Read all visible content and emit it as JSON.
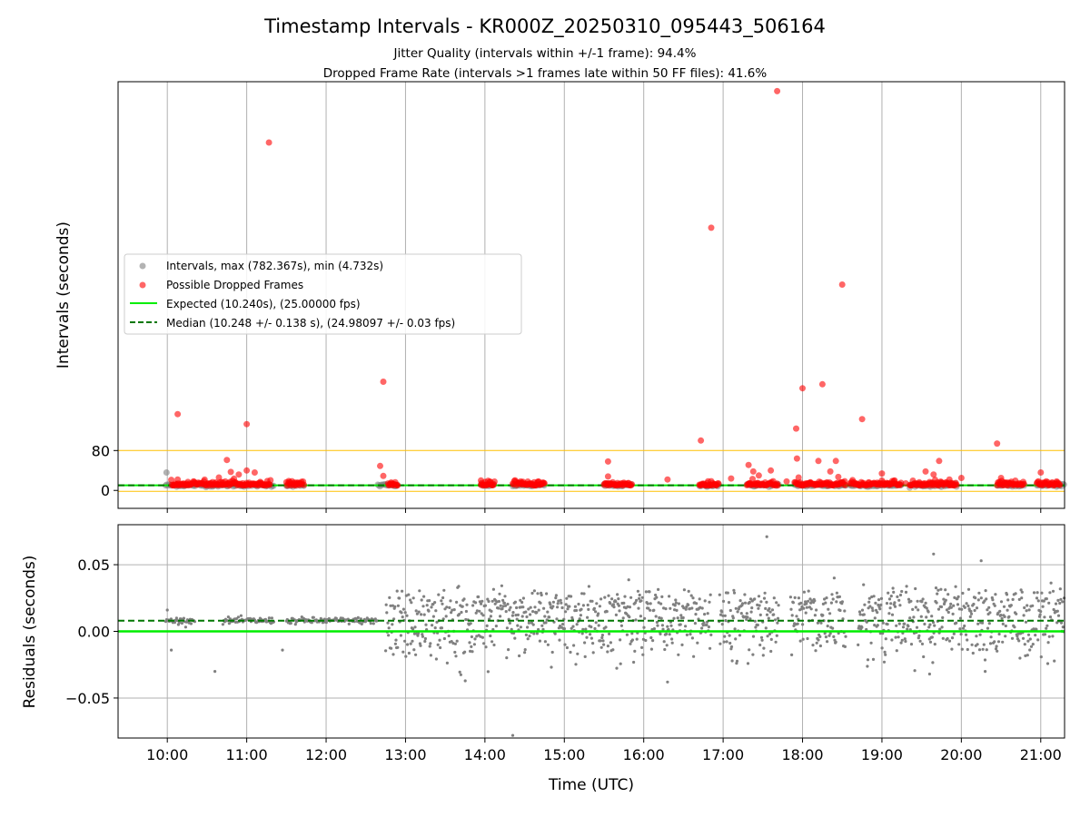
{
  "title": "Timestamp Intervals - KR000Z_20250310_095443_506164",
  "subtitles": [
    "Jitter Quality (intervals within +/-1 frame): 94.4%",
    "Dropped Frame Rate (intervals >1 frames late within 50 FF files): 41.6%"
  ],
  "colors": {
    "intervals": "#808080",
    "dropped": "#ff0000",
    "expected": "#00ee00",
    "median": "#007700",
    "threshold": "#ffc000",
    "grid": "#b0b0b0"
  },
  "chart_data": [
    {
      "type": "scatter",
      "panel": "top",
      "ylabel": "Intervals (seconds)",
      "yticks": [
        0,
        80
      ],
      "ylim": [
        -36,
        820
      ],
      "xticks": [
        "10:00",
        "11:00",
        "12:00",
        "13:00",
        "14:00",
        "15:00",
        "16:00",
        "17:00",
        "18:00",
        "19:00",
        "20:00",
        "21:00"
      ],
      "xlim_hours": [
        9.38,
        21.3
      ],
      "reference_lines": {
        "expected": 10.24,
        "median": 10.248,
        "threshold_upper": 80,
        "threshold_lower": 0
      },
      "legend": {
        "position": "center-left",
        "entries": [
          {
            "label": "Intervals, max (782.367s), min (4.732s)",
            "kind": "intervals"
          },
          {
            "label": "Possible Dropped Frames",
            "kind": "dropped"
          },
          {
            "label": "Expected (10.240s), (25.00000 fps)",
            "kind": "expected"
          },
          {
            "label": "Median (10.248 +/- 0.138 s), (24.98097 +/- 0.03 fps)",
            "kind": "median"
          }
        ]
      },
      "series": [
        {
          "name": "Intervals",
          "baseline": 10.24,
          "segments": [
            [
              9.98,
              11.35
            ],
            [
              11.5,
              11.72
            ],
            [
              12.65,
              12.9
            ],
            [
              13.95,
              14.12
            ],
            [
              14.35,
              14.75
            ],
            [
              15.5,
              15.85
            ],
            [
              16.7,
              16.95
            ],
            [
              17.3,
              17.7
            ],
            [
              17.9,
              18.55
            ],
            [
              18.6,
              19.25
            ],
            [
              19.35,
              19.95
            ],
            [
              20.45,
              20.8
            ],
            [
              20.95,
              21.3
            ]
          ]
        },
        {
          "name": "Possible Dropped Frames",
          "points": [
            [
              10.13,
              153
            ],
            [
              11.0,
              133
            ],
            [
              11.28,
              698
            ],
            [
              12.72,
              218
            ],
            [
              16.85,
              527
            ],
            [
              17.68,
              801
            ],
            [
              18.5,
              413
            ],
            [
              18.25,
              213
            ],
            [
              18.0,
              205
            ],
            [
              17.92,
              124
            ],
            [
              18.75,
              143
            ],
            [
              16.72,
              100
            ],
            [
              20.45,
              94
            ],
            [
              10.75,
              61
            ],
            [
              15.55,
              58
            ],
            [
              17.93,
              64
            ],
            [
              18.2,
              59
            ],
            [
              18.42,
              59
            ],
            [
              19.72,
              59
            ],
            [
              17.32,
              51
            ],
            [
              12.68,
              49
            ],
            [
              10.65,
              26
            ],
            [
              10.8,
              37
            ],
            [
              10.9,
              32
            ],
            [
              11.1,
              36
            ],
            [
              11.0,
              40
            ],
            [
              12.72,
              29
            ],
            [
              14.45,
              18
            ],
            [
              15.55,
              28
            ],
            [
              16.3,
              22
            ],
            [
              17.1,
              24
            ],
            [
              17.38,
              38
            ],
            [
              17.45,
              30
            ],
            [
              17.6,
              40
            ],
            [
              17.95,
              26
            ],
            [
              18.35,
              38
            ],
            [
              18.45,
              27
            ],
            [
              19.0,
              34
            ],
            [
              19.55,
              38
            ],
            [
              19.65,
              32
            ],
            [
              20.0,
              25
            ],
            [
              20.5,
              25
            ],
            [
              21.0,
              36
            ],
            [
              13.95,
              20
            ],
            [
              10.13,
              22
            ],
            [
              17.8,
              18
            ],
            [
              18.1,
              15
            ],
            [
              19.3,
              14
            ],
            [
              19.85,
              22
            ],
            [
              21.2,
              18
            ]
          ]
        }
      ]
    },
    {
      "type": "scatter",
      "panel": "bottom",
      "xlabel": "Time (UTC)",
      "ylabel": "Residuals (seconds)",
      "ylim": [
        -0.08,
        0.08
      ],
      "yticks": [
        "−0.05",
        "0.00",
        "0.05"
      ],
      "ytick_values": [
        -0.05,
        0.0,
        0.05
      ],
      "reference_lines": {
        "expected": 0.0,
        "median": 0.008
      },
      "series": [
        {
          "name": "Residuals",
          "stable_segments": [
            [
              9.98,
              10.35
            ],
            [
              10.7,
              11.35
            ],
            [
              11.5,
              12.65
            ]
          ],
          "stable_level": 0.008,
          "noisy_segments": [
            [
              12.75,
              16.85
            ],
            [
              16.95,
              17.7
            ],
            [
              17.85,
              18.55
            ],
            [
              18.7,
              21.3
            ]
          ],
          "noisy_spread": 0.02,
          "outliers": [
            [
              17.55,
              0.071
            ],
            [
              19.65,
              0.058
            ],
            [
              20.25,
              0.053
            ],
            [
              14.35,
              -0.078
            ],
            [
              10.0,
              0.016
            ],
            [
              10.05,
              -0.014
            ],
            [
              10.6,
              -0.03
            ],
            [
              11.45,
              -0.014
            ],
            [
              16.3,
              -0.038
            ],
            [
              19.6,
              -0.032
            ],
            [
              20.3,
              -0.03
            ]
          ]
        }
      ]
    }
  ]
}
